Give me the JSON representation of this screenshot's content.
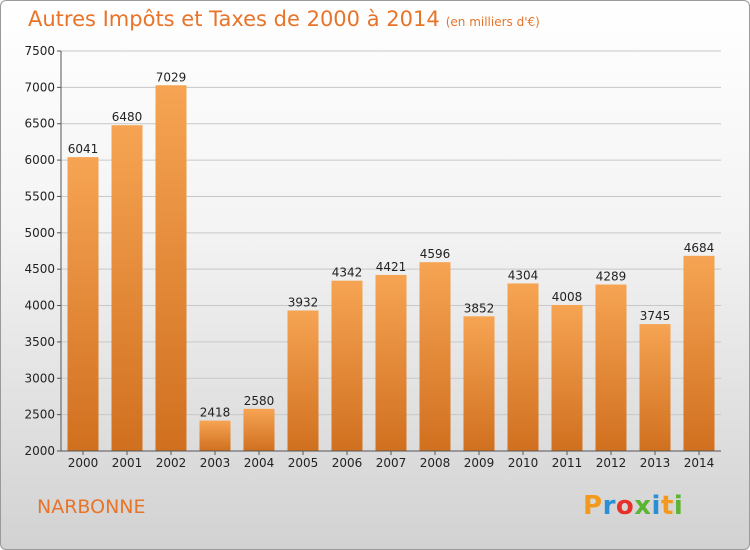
{
  "chart_data": {
    "type": "bar",
    "title": "Autres Impôts et Taxes de 2000 à 2014",
    "unit": "(en milliers d'€)",
    "categories": [
      "2000",
      "2001",
      "2002",
      "2003",
      "2004",
      "2005",
      "2006",
      "2007",
      "2008",
      "2009",
      "2010",
      "2011",
      "2012",
      "2013",
      "2014"
    ],
    "values": [
      6041,
      6480,
      7029,
      2418,
      2580,
      3932,
      4342,
      4421,
      4596,
      3852,
      4304,
      4008,
      4289,
      3745,
      4684
    ],
    "ylim": [
      2000,
      7500
    ],
    "yticks": [
      2000,
      2500,
      3000,
      3500,
      4000,
      4500,
      5000,
      5500,
      6000,
      6500,
      7000,
      7500
    ],
    "grid": true,
    "bar_color_light": "#f6a453",
    "bar_color_dark": "#d0701f"
  },
  "footer": {
    "city": "NARBONNE",
    "logo": "Proxiti"
  },
  "logo_colors": [
    "#f39a1e",
    "#2a8fd6",
    "#e8302a",
    "#5cb531",
    "#2a8fd6",
    "#f39a1e",
    "#5cb531"
  ]
}
